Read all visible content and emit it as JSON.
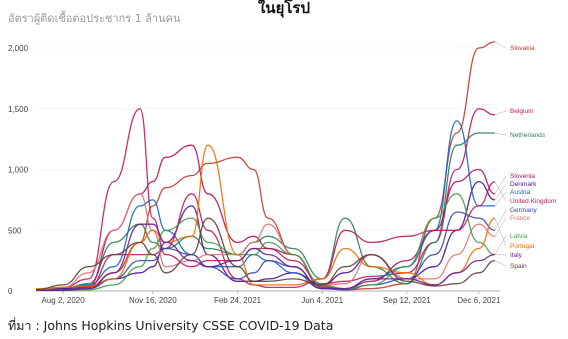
{
  "header": {
    "title": "ในยุโรป",
    "ylabel": "อัตราผู้ติดเชื้อต่อประชากร 1 ล้านคน",
    "source": "ที่มา : Johns Hopkins University CSSE COVID-19 Data"
  },
  "chart_data": {
    "type": "line",
    "title": "ในยุโรป",
    "ylabel": "อัตราผู้ติดเชื้อต่อประชากร 1 ล้านคน",
    "xlabel": "",
    "x": [
      "2020-07-01",
      "2020-08-02",
      "2020-09-01",
      "2020-10-01",
      "2020-11-01",
      "2020-11-16",
      "2020-12-01",
      "2021-01-01",
      "2021-01-20",
      "2021-02-24",
      "2021-03-15",
      "2021-04-01",
      "2021-05-01",
      "2021-06-04",
      "2021-07-01",
      "2021-08-01",
      "2021-09-12",
      "2021-10-15",
      "2021-11-10",
      "2021-12-06",
      "2021-12-25"
    ],
    "x_ticks": [
      "Aug 2, 2020",
      "Nov 16, 2020",
      "Feb 24, 2021",
      "Jun 4, 2021",
      "Sep 12, 2021",
      "Dec 6, 2021"
    ],
    "y_ticks": [
      "0",
      "500",
      "1,000",
      "1,500",
      "2,000"
    ],
    "ylim": [
      0,
      2100
    ],
    "grid": true,
    "legend": "right-end labels",
    "series": [
      {
        "name": "Slovakia",
        "color": "#c0392b",
        "values": [
          5,
          10,
          30,
          150,
          400,
          700,
          850,
          950,
          1050,
          1100,
          1000,
          600,
          300,
          40,
          10,
          20,
          60,
          600,
          1300,
          2000,
          2050
        ]
      },
      {
        "name": "Belgium",
        "color": "#c2185b",
        "values": [
          10,
          30,
          100,
          900,
          1500,
          600,
          300,
          200,
          250,
          250,
          350,
          350,
          250,
          60,
          80,
          120,
          150,
          400,
          1000,
          1500,
          1450
        ]
      },
      {
        "name": "Netherlands",
        "color": "#2e7d5b",
        "values": [
          5,
          20,
          60,
          400,
          550,
          400,
          350,
          450,
          350,
          300,
          400,
          450,
          350,
          100,
          600,
          200,
          60,
          400,
          1200,
          1300,
          1300
        ]
      },
      {
        "name": "Slovenia",
        "color": "#ad1457",
        "values": [
          5,
          10,
          40,
          500,
          800,
          900,
          1100,
          1200,
          800,
          400,
          450,
          350,
          300,
          30,
          20,
          80,
          250,
          500,
          900,
          1000,
          800
        ]
      },
      {
        "name": "Denmark",
        "color": "#4a148c",
        "values": [
          5,
          20,
          40,
          100,
          150,
          200,
          400,
          700,
          300,
          80,
          80,
          100,
          150,
          50,
          150,
          300,
          100,
          200,
          500,
          900,
          750
        ]
      },
      {
        "name": "Austria",
        "color": "#1565c0",
        "values": [
          5,
          10,
          50,
          200,
          700,
          750,
          500,
          300,
          200,
          200,
          300,
          250,
          150,
          20,
          20,
          100,
          200,
          500,
          1400,
          700,
          700
        ]
      },
      {
        "name": "United Kingdom",
        "color": "#c2185b",
        "values": [
          5,
          10,
          30,
          300,
          300,
          300,
          350,
          800,
          500,
          100,
          50,
          30,
          30,
          100,
          500,
          400,
          450,
          500,
          500,
          700,
          900
        ]
      },
      {
        "name": "Germany",
        "color": "#3949ab",
        "values": [
          5,
          10,
          20,
          100,
          250,
          250,
          350,
          300,
          200,
          100,
          150,
          250,
          200,
          20,
          10,
          50,
          100,
          300,
          650,
          600,
          500
        ]
      },
      {
        "name": "France",
        "color": "#e57373",
        "values": [
          10,
          30,
          150,
          500,
          800,
          500,
          200,
          250,
          300,
          300,
          400,
          550,
          300,
          50,
          60,
          300,
          100,
          100,
          300,
          550,
          450
        ]
      },
      {
        "name": "Latvia",
        "color": "#43a047",
        "values": [
          5,
          5,
          10,
          50,
          200,
          350,
          500,
          600,
          400,
          300,
          300,
          400,
          300,
          50,
          20,
          50,
          200,
          600,
          800,
          400,
          300
        ]
      },
      {
        "name": "Portugal",
        "color": "#ef6c00",
        "values": [
          20,
          30,
          40,
          100,
          400,
          500,
          400,
          450,
          1200,
          300,
          50,
          50,
          50,
          100,
          350,
          200,
          150,
          50,
          150,
          350,
          600
        ]
      },
      {
        "name": "Italy",
        "color": "#6a1b9a",
        "values": [
          5,
          5,
          20,
          150,
          550,
          550,
          400,
          250,
          200,
          250,
          350,
          300,
          200,
          20,
          20,
          100,
          100,
          50,
          150,
          250,
          300
        ]
      },
      {
        "name": "Spain",
        "color": "#5d4037",
        "values": [
          10,
          50,
          200,
          300,
          400,
          300,
          150,
          300,
          600,
          200,
          80,
          80,
          100,
          50,
          200,
          300,
          80,
          40,
          60,
          150,
          250
        ]
      }
    ],
    "colors": {
      "grid": "#d9d9d9",
      "axis_text": "#444444"
    }
  }
}
